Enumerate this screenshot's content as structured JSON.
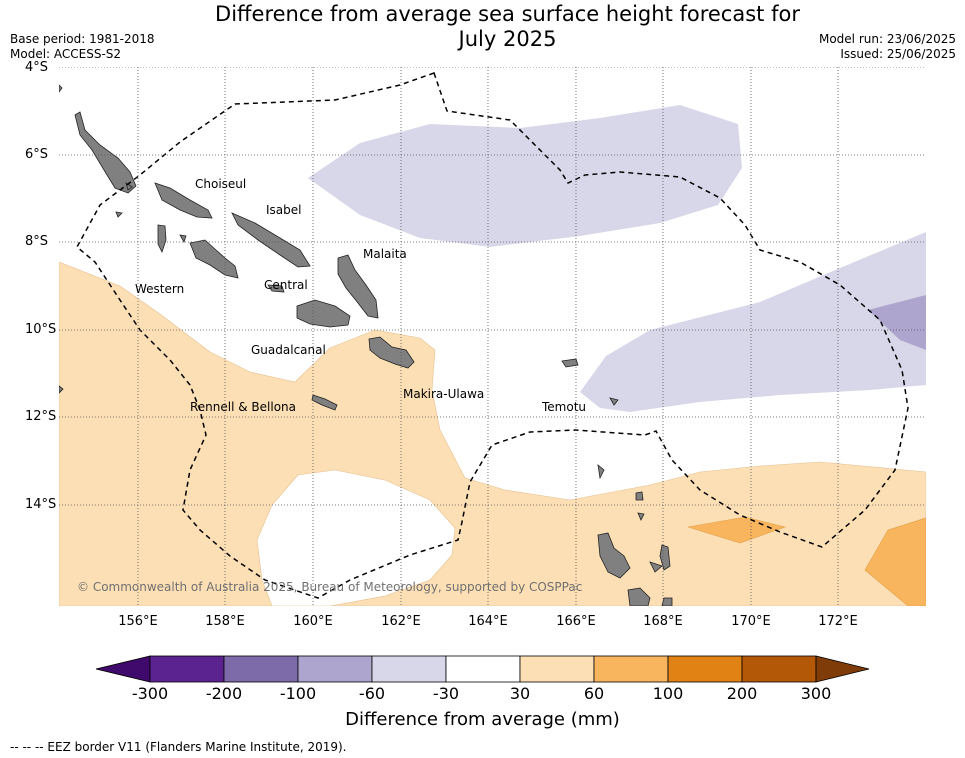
{
  "header": {
    "title_line1": "Difference from average sea surface height forecast for",
    "title_line2": "July 2025",
    "base_period": "Base period: 1981-2018",
    "model": "Model: ACCESS-S2",
    "model_run": "Model run: 23/06/2025",
    "issued": "Issued: 25/06/2025"
  },
  "map": {
    "lat_labels": [
      "4°S",
      "6°S",
      "8°S",
      "10°S",
      "12°S",
      "14°S"
    ],
    "lon_labels": [
      "156°E",
      "158°E",
      "160°E",
      "162°E",
      "164°E",
      "166°E",
      "168°E",
      "170°E",
      "172°E"
    ],
    "provinces": [
      "Choiseul",
      "Isabel",
      "Malaita",
      "Western",
      "Central",
      "Guadalcanal",
      "Makira-Ulawa",
      "Rennell & Bellona",
      "Temotu"
    ],
    "copyright": "© Commonwealth of Australia 2025, Bureau of Meteorology, supported by COSPPac",
    "land_color": "#808080",
    "ocean_color": "#ffffff"
  },
  "colorbar": {
    "title": "Difference from average (mm)",
    "ticks": [
      "-300",
      "-200",
      "-100",
      "-60",
      "-30",
      "30",
      "60",
      "100",
      "200",
      "300"
    ],
    "colors": [
      "#3f0a6b",
      "#5a2390",
      "#7d6ba9",
      "#ada5cd",
      "#d8d7ea",
      "#ffffff",
      "#fcdfb5",
      "#f9b55d",
      "#e08214",
      "#b35806",
      "#7f3b08"
    ]
  },
  "footnote": "--  --  -- EEZ border V11 (Flanders Marine Institute, 2019)."
}
